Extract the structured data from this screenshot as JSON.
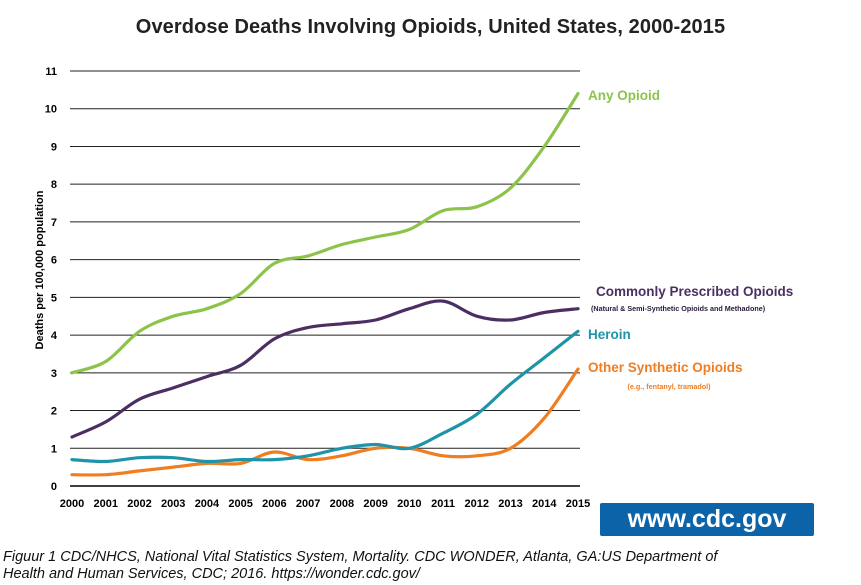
{
  "chart_data": {
    "type": "line",
    "title": "Overdose Deaths Involving Opioids, United States, 2000-2015",
    "xlabel": "",
    "ylabel": "Deaths per 100,000 population",
    "ylim": [
      0,
      11
    ],
    "yticks": [
      0,
      1,
      2,
      3,
      4,
      5,
      6,
      7,
      8,
      9,
      10,
      11
    ],
    "grid": true,
    "x": [
      "2000",
      "2001",
      "2002",
      "2003",
      "2004",
      "2005",
      "2006",
      "2007",
      "2008",
      "2009",
      "2010",
      "2011",
      "2012",
      "2013",
      "2014",
      "2015"
    ],
    "series": [
      {
        "name": "Any Opioid",
        "color": "#8dc34a",
        "values": [
          3.0,
          3.3,
          4.1,
          4.5,
          4.7,
          5.1,
          5.9,
          6.1,
          6.4,
          6.6,
          6.8,
          7.3,
          7.4,
          7.9,
          9.0,
          10.4
        ]
      },
      {
        "name": "Commonly Prescribed Opioids",
        "note": "(Natural & Semi-Synthetic Opioids and Methadone)",
        "color": "#4b2f63",
        "values": [
          1.3,
          1.7,
          2.3,
          2.6,
          2.9,
          3.2,
          3.9,
          4.2,
          4.3,
          4.4,
          4.7,
          4.9,
          4.5,
          4.4,
          4.6,
          4.7
        ]
      },
      {
        "name": "Heroin",
        "color": "#1f94a8",
        "values": [
          0.7,
          0.65,
          0.75,
          0.75,
          0.65,
          0.7,
          0.7,
          0.8,
          1.0,
          1.1,
          1.0,
          1.4,
          1.9,
          2.7,
          3.4,
          4.1
        ]
      },
      {
        "name": "Other Synthetic Opioids",
        "note": "(e.g., fentanyl, tramadol)",
        "color": "#ef7d22",
        "values": [
          0.3,
          0.3,
          0.4,
          0.5,
          0.6,
          0.6,
          0.9,
          0.7,
          0.8,
          1.0,
          1.0,
          0.8,
          0.8,
          1.0,
          1.8,
          3.1
        ]
      }
    ]
  },
  "branding": {
    "url_badge": "www.cdc.gov"
  },
  "caption": {
    "line1": "Figuur 1 CDC/NHCS, National Vital Statistics System, Mortality. CDC WONDER, Atlanta, GA:US Department of",
    "line2": "Health and Human Services, CDC; 2016. https://wonder.cdc.gov/"
  }
}
